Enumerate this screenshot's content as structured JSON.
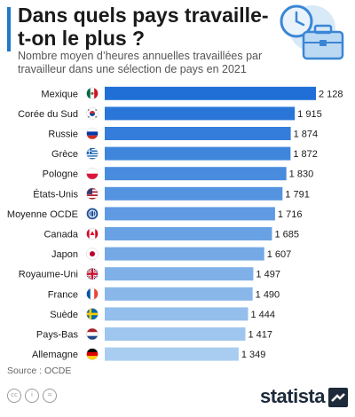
{
  "header": {
    "title": "Dans quels pays travaille-t-on le plus ?",
    "subtitle": "Nombre moyen d’heures annuelles travaillées par travailleur dans une sélection de pays en 2021"
  },
  "chart_data": {
    "type": "bar",
    "orientation": "horizontal",
    "categories": [
      "Mexique",
      "Corée du Sud",
      "Russie",
      "Grèce",
      "Pologne",
      "États-Unis",
      "Moyenne OCDE",
      "Canada",
      "Japon",
      "Royaume-Uni",
      "France",
      "Suède",
      "Pays-Bas",
      "Allemagne"
    ],
    "values": [
      2128,
      1915,
      1874,
      1872,
      1830,
      1791,
      1716,
      1685,
      1607,
      1497,
      1490,
      1444,
      1417,
      1349
    ],
    "value_labels": [
      "2 128",
      "1 915",
      "1 874",
      "1 872",
      "1 830",
      "1 791",
      "1 716",
      "1 685",
      "1 607",
      "1 497",
      "1 490",
      "1 444",
      "1 417",
      "1 349"
    ],
    "flag_icons": [
      "mexico-flag-icon",
      "south-korea-flag-icon",
      "russia-flag-icon",
      "greece-flag-icon",
      "poland-flag-icon",
      "usa-flag-icon",
      "oecd-icon",
      "canada-flag-icon",
      "japan-flag-icon",
      "uk-flag-icon",
      "france-flag-icon",
      "sweden-flag-icon",
      "netherlands-flag-icon",
      "germany-flag-icon"
    ],
    "xlim": [
      0,
      2128
    ],
    "grid": false,
    "colors": {
      "bar_top": "#1f6fd6",
      "bar_bottom": "#a9cdf0"
    }
  },
  "footer": {
    "source": "Source : OCDE",
    "brand": "statista"
  }
}
